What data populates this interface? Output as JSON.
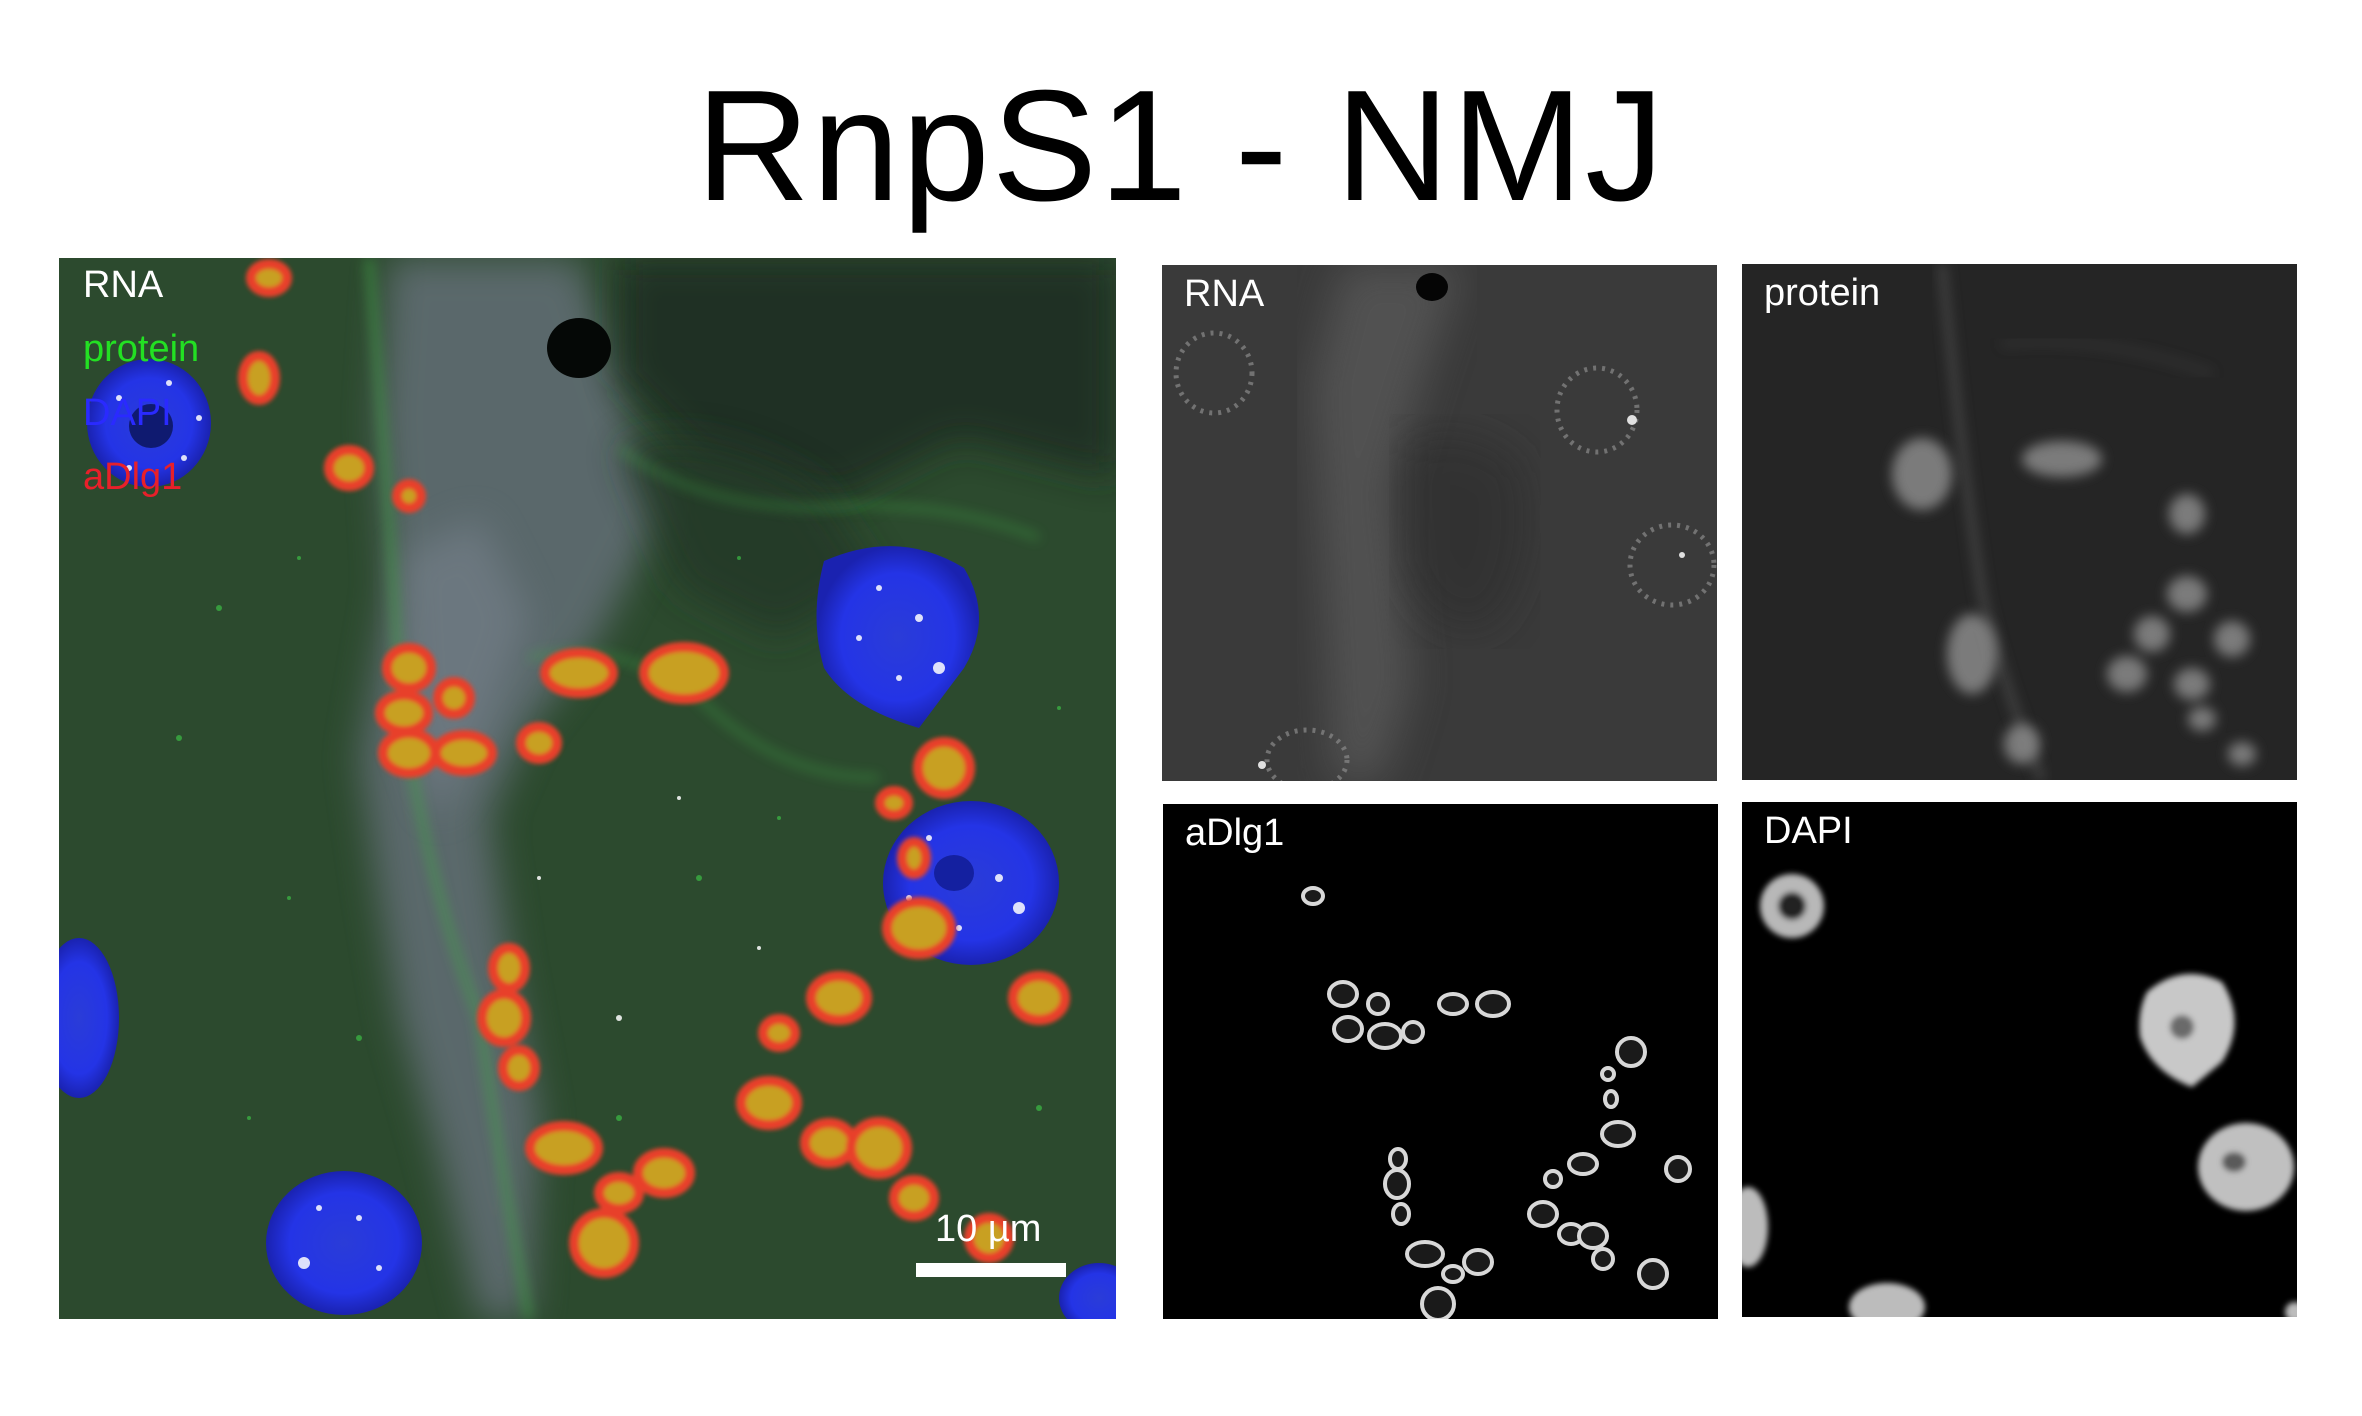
{
  "title": "RnpS1 - NMJ",
  "merge_panel": {
    "legend": [
      {
        "label": "RNA",
        "color": "#ffffff"
      },
      {
        "label": "protein",
        "color": "#23e023"
      },
      {
        "label": "DAPI",
        "color": "#2a2aff"
      },
      {
        "label": "aDlg1",
        "color": "#e8202a"
      }
    ],
    "scale_bar_label": "10 µm"
  },
  "channel_panels": [
    {
      "label": "RNA"
    },
    {
      "label": "protein"
    },
    {
      "label": "aDlg1"
    },
    {
      "label": "DAPI"
    }
  ]
}
